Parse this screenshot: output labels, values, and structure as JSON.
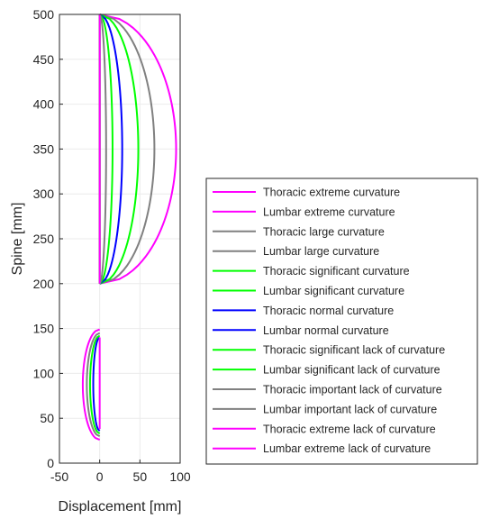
{
  "chart_data": {
    "type": "line",
    "xlabel": "Displacement [mm]",
    "ylabel": "Spine [mm]",
    "xlim": [
      -50,
      100
    ],
    "ylim": [
      0,
      500
    ],
    "xticks": [
      -50,
      0,
      50,
      100
    ],
    "yticks": [
      0,
      50,
      100,
      150,
      200,
      250,
      300,
      350,
      400,
      450,
      500
    ],
    "grid": true,
    "legend_placement": "right",
    "colors": {
      "extreme": "#ff00ff",
      "large": "#808080",
      "significant": "#00ff00",
      "normal": "#0000ff",
      "axes": "#262626",
      "grid": "#ebebeb"
    },
    "thoracic_region": {
      "y_start": 200,
      "y_end": 500
    },
    "lumbar_region": {
      "y_start": 25,
      "y_end": 150
    },
    "series": [
      {
        "name": "Thoracic extreme curvature",
        "region": "thoracic",
        "color": "#ff00ff",
        "max_displacement": 95,
        "apex_y": 350,
        "y_range": [
          200,
          500
        ]
      },
      {
        "name": "Lumbar extreme curvature",
        "region": "thoracic",
        "color": "#ff00ff",
        "max_displacement": 0,
        "apex_y": 350,
        "y_range": [
          200,
          500
        ]
      },
      {
        "name": "Thoracic large curvature",
        "region": "thoracic",
        "color": "#808080",
        "max_displacement": 68,
        "apex_y": 350,
        "y_range": [
          200,
          500
        ]
      },
      {
        "name": "Lumbar large curvature",
        "region": "thoracic",
        "color": "#808080",
        "max_displacement": 0,
        "apex_y": 350,
        "y_range": [
          200,
          500
        ]
      },
      {
        "name": "Thoracic significant curvature",
        "region": "thoracic",
        "color": "#00ff00",
        "max_displacement": 48,
        "apex_y": 350,
        "y_range": [
          200,
          500
        ]
      },
      {
        "name": "Lumbar significant curvature",
        "region": "thoracic",
        "color": "#00ff00",
        "max_displacement": 0,
        "apex_y": 350,
        "y_range": [
          200,
          500
        ]
      },
      {
        "name": "Thoracic normal curvature",
        "region": "thoracic",
        "color": "#0000ff",
        "max_displacement": 28,
        "apex_y": 350,
        "y_range": [
          200,
          500
        ]
      },
      {
        "name": "Lumbar normal curvature",
        "region": "lumbar",
        "color": "#0000ff",
        "max_displacement": -8,
        "apex_y": 87,
        "y_range": [
          36,
          140
        ]
      },
      {
        "name": "Thoracic significant lack of curvature",
        "region": "thoracic",
        "color": "#00ff00",
        "max_displacement": 16,
        "apex_y": 350,
        "y_range": [
          200,
          500
        ]
      },
      {
        "name": "Lumbar significant lack of curvature",
        "region": "lumbar",
        "color": "#00ff00",
        "max_displacement": -12,
        "apex_y": 87,
        "y_range": [
          33,
          142
        ]
      },
      {
        "name": "Thoracic important lack of curvature",
        "region": "thoracic",
        "color": "#808080",
        "max_displacement": 8,
        "apex_y": 350,
        "y_range": [
          200,
          500
        ]
      },
      {
        "name": "Lumbar important lack of curvature",
        "region": "lumbar",
        "color": "#808080",
        "max_displacement": -16,
        "apex_y": 87,
        "y_range": [
          30,
          145
        ]
      },
      {
        "name": "Thoracic extreme lack of curvature",
        "region": "thoracic",
        "color": "#ff00ff",
        "max_displacement": 0,
        "apex_y": 350,
        "y_range": [
          200,
          500
        ]
      },
      {
        "name": "Lumbar extreme lack of curvature",
        "region": "lumbar",
        "color": "#ff00ff",
        "max_displacement": -21,
        "apex_y": 87,
        "y_range": [
          26,
          149
        ]
      }
    ],
    "lumbar_vertical": {
      "color": "#ff00ff",
      "x": 0,
      "y_range": [
        38,
        140
      ]
    }
  }
}
